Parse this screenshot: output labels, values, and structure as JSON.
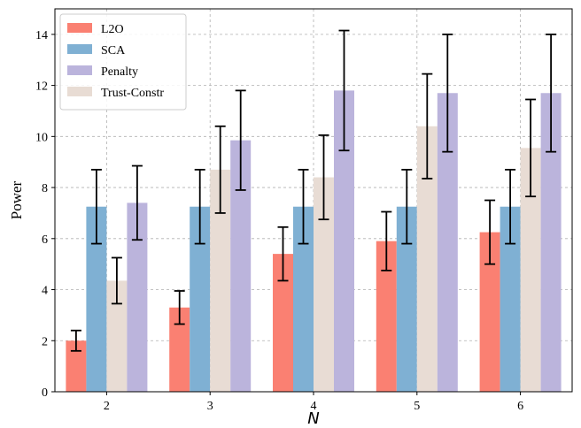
{
  "chart_data": {
    "type": "bar",
    "xlabel": "N",
    "ylabel": "Power",
    "categories": [
      "2",
      "3",
      "4",
      "5",
      "6"
    ],
    "ylim": [
      0,
      15
    ],
    "yticks": [
      0,
      2,
      4,
      6,
      8,
      10,
      12,
      14
    ],
    "grid": true,
    "legend_position": "top-left",
    "series": [
      {
        "name": "L2O",
        "color": "#fa8072",
        "values": [
          2.0,
          3.3,
          5.4,
          5.9,
          6.25
        ],
        "errors": [
          0.4,
          0.65,
          1.05,
          1.15,
          1.25
        ]
      },
      {
        "name": "SCA",
        "color": "#7fb0d3",
        "values": [
          7.25,
          7.25,
          7.25,
          7.25,
          7.25
        ],
        "errors": [
          1.45,
          1.45,
          1.45,
          1.45,
          1.45
        ]
      },
      {
        "name": "Trust-Constr",
        "color": "#e8dcd4",
        "values": [
          4.35,
          8.7,
          8.4,
          10.4,
          9.55
        ],
        "errors": [
          0.9,
          1.7,
          1.65,
          2.05,
          1.9
        ]
      },
      {
        "name": "Penalty",
        "color": "#bbb4dc",
        "values": [
          7.4,
          9.85,
          11.8,
          11.7,
          11.7
        ],
        "errors": [
          1.45,
          1.95,
          2.35,
          2.3,
          2.3
        ]
      }
    ],
    "legend_order": [
      "L2O",
      "SCA",
      "Penalty",
      "Trust-Constr"
    ]
  }
}
